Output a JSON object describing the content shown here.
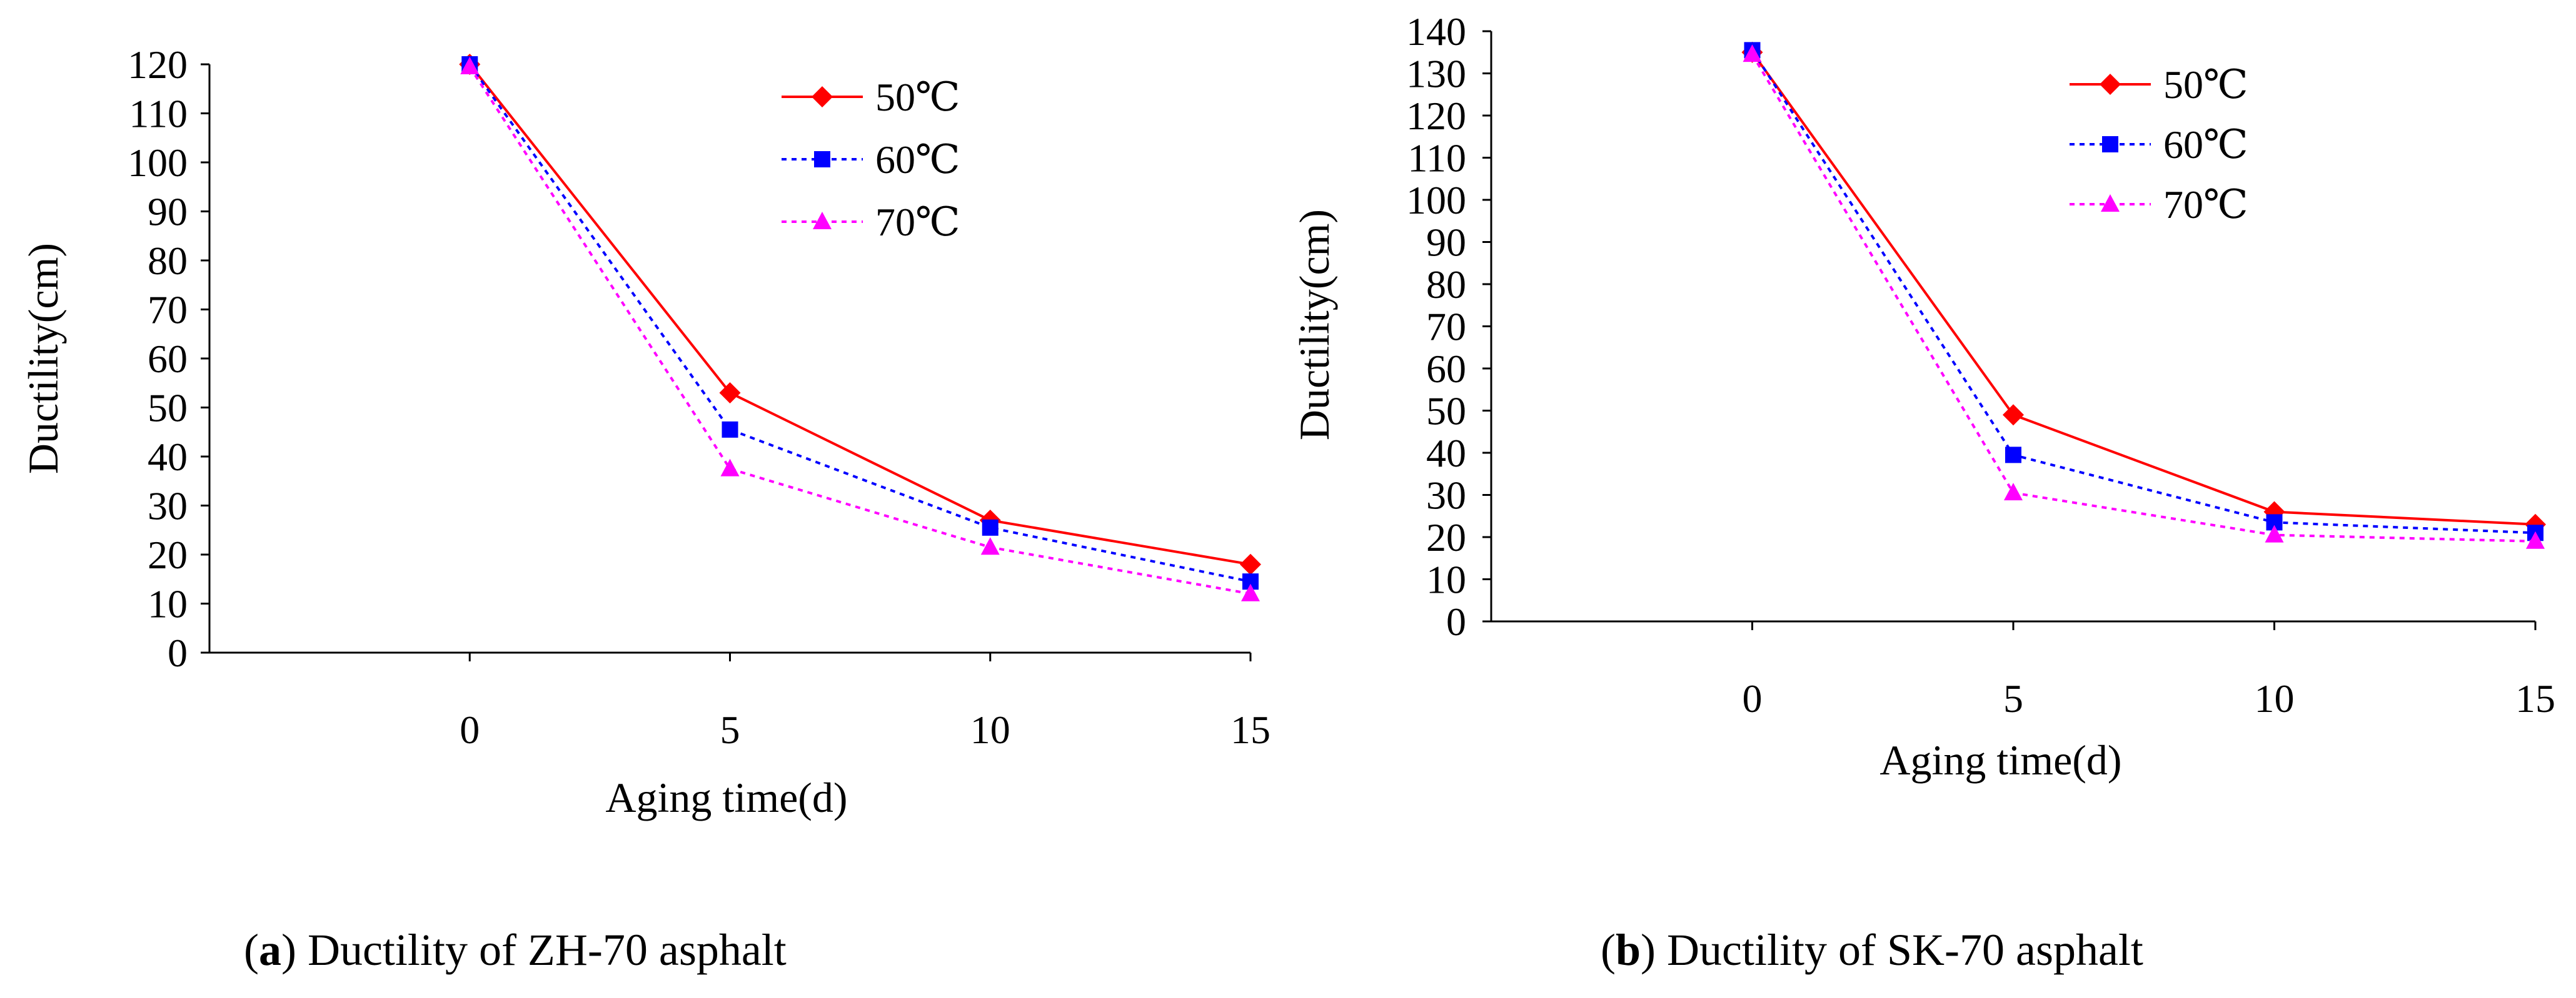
{
  "chart_data": [
    {
      "type": "line",
      "title": "",
      "xlabel": "Aging time(d)",
      "ylabel": "Ductility(cm)",
      "x": [
        0,
        5,
        10,
        15
      ],
      "xticks": [
        "0",
        "5",
        "10",
        "15"
      ],
      "ylim": [
        0,
        120
      ],
      "ystep": 10,
      "legend_position": "top-right",
      "series": [
        {
          "name": "50℃",
          "values": [
            120,
            53,
            27,
            18
          ],
          "color": "#ff0000",
          "dash": "solid",
          "marker": "diamond"
        },
        {
          "name": "60℃",
          "values": [
            120,
            45.5,
            25.5,
            14.5
          ],
          "color": "#0000ff",
          "dash": "dotted",
          "marker": "square"
        },
        {
          "name": "70℃",
          "values": [
            119.5,
            37.5,
            21.5,
            12
          ],
          "color": "#ff00ff",
          "dash": "dotted",
          "marker": "triangle"
        }
      ]
    },
    {
      "type": "line",
      "title": "",
      "xlabel": "Aging time(d)",
      "ylabel": "Ductility(cm)",
      "x": [
        0,
        5,
        10,
        15
      ],
      "xticks": [
        "0",
        "5",
        "10",
        "15"
      ],
      "ylim": [
        0,
        140
      ],
      "ystep": 10,
      "legend_position": "top-right",
      "series": [
        {
          "name": "50℃",
          "values": [
            135,
            49,
            26,
            23
          ],
          "color": "#ff0000",
          "dash": "solid",
          "marker": "diamond"
        },
        {
          "name": "60℃",
          "values": [
            135.5,
            39.5,
            23.5,
            21
          ],
          "color": "#0000ff",
          "dash": "dotted",
          "marker": "square"
        },
        {
          "name": "70℃",
          "values": [
            134.5,
            30.5,
            20.5,
            19
          ],
          "color": "#ff00ff",
          "dash": "dotted",
          "marker": "triangle"
        }
      ]
    }
  ],
  "captions": [
    {
      "letter": "a",
      "text": "Ductility of ZH-70 asphalt"
    },
    {
      "letter": "b",
      "text": "Ductility of SK-70 asphalt"
    }
  ]
}
